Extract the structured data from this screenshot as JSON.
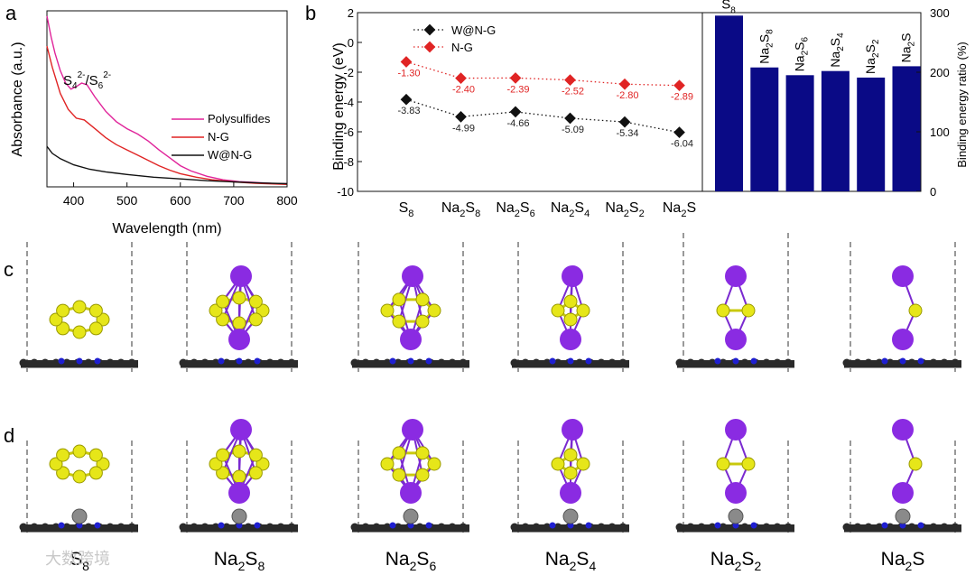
{
  "panels": {
    "a": "a",
    "b": "b",
    "c": "c",
    "d": "d"
  },
  "watermark": "大数跨境",
  "chart_data": [
    {
      "type": "line",
      "panel": "a",
      "xlabel": "Wavelength (nm)",
      "ylabel": "Absorbance (a.u.)",
      "xlim": [
        350,
        800
      ],
      "x_ticks": [
        400,
        500,
        600,
        700,
        800
      ],
      "annotation": {
        "base1": "S",
        "sub1": "4",
        "sup1": "2-",
        "sep": "/S",
        "sub2": "6",
        "sup2": "2-"
      },
      "legend_position": "right",
      "series": [
        {
          "name": "Polysulfides",
          "color": "#e0249a",
          "x": [
            350,
            358,
            365,
            375,
            385,
            395,
            405,
            415,
            425,
            440,
            460,
            480,
            500,
            520,
            540,
            560,
            580,
            600,
            620,
            650,
            680,
            710,
            740,
            770,
            800
          ],
          "y": [
            0.97,
            0.85,
            0.76,
            0.66,
            0.59,
            0.555,
            0.57,
            0.59,
            0.58,
            0.51,
            0.43,
            0.37,
            0.33,
            0.3,
            0.26,
            0.21,
            0.165,
            0.12,
            0.09,
            0.06,
            0.04,
            0.03,
            0.025,
            0.02,
            0.018
          ]
        },
        {
          "name": "N-G",
          "color": "#e02424",
          "x": [
            350,
            360,
            375,
            390,
            405,
            420,
            440,
            460,
            480,
            500,
            520,
            540,
            560,
            580,
            600,
            630,
            660,
            700,
            740,
            800
          ],
          "y": [
            0.8,
            0.68,
            0.53,
            0.44,
            0.39,
            0.38,
            0.33,
            0.28,
            0.24,
            0.21,
            0.18,
            0.15,
            0.12,
            0.095,
            0.075,
            0.055,
            0.04,
            0.028,
            0.02,
            0.014
          ]
        },
        {
          "name": "W@N-G",
          "color": "#111111",
          "x": [
            350,
            360,
            375,
            400,
            430,
            460,
            500,
            550,
            600,
            650,
            700,
            750,
            800
          ],
          "y": [
            0.23,
            0.19,
            0.16,
            0.125,
            0.1,
            0.085,
            0.07,
            0.055,
            0.045,
            0.035,
            0.028,
            0.022,
            0.018
          ]
        }
      ]
    },
    {
      "type": "line",
      "panel": "b-left",
      "ylabel": "Binding energy (eV)",
      "ylim": [
        -10,
        2
      ],
      "y_ticks": [
        2,
        0,
        -2,
        -4,
        -6,
        -8,
        -10
      ],
      "categories": [
        {
          "base": "S",
          "sub": "8"
        },
        {
          "base": "Na",
          "sub": "2",
          "mid": "S",
          "sub2": "8"
        },
        {
          "base": "Na",
          "sub": "2",
          "mid": "S",
          "sub2": "6"
        },
        {
          "base": "Na",
          "sub": "2",
          "mid": "S",
          "sub2": "4"
        },
        {
          "base": "Na",
          "sub": "2",
          "mid": "S",
          "sub2": "2"
        },
        {
          "base": "Na",
          "sub": "2",
          "mid": "S",
          "sub2": ""
        }
      ],
      "series": [
        {
          "name": "W@N-G",
          "color": "#111111",
          "values": [
            -3.83,
            -4.99,
            -4.66,
            -5.09,
            -5.34,
            -6.04
          ],
          "labels": [
            "-3.83",
            "-4.99",
            "-4.66",
            "-5.09",
            "-5.34",
            "-6.04"
          ]
        },
        {
          "name": "N-G",
          "color": "#e02424",
          "values": [
            -1.3,
            -2.4,
            -2.39,
            -2.52,
            -2.8,
            -2.89
          ],
          "labels": [
            "-1.30",
            "-2.40",
            "-2.39",
            "-2.52",
            "-2.80",
            "-2.89"
          ]
        }
      ]
    },
    {
      "type": "bar",
      "panel": "b-right",
      "ylabel": "Binding energy ratio (%)",
      "ylim": [
        0,
        300
      ],
      "y_ticks": [
        0,
        100,
        200,
        300
      ],
      "color": "#0a0a86",
      "categories": [
        {
          "base": "S",
          "sub": "8"
        },
        {
          "base": "Na",
          "sub": "2",
          "mid": "S",
          "sub2": "8"
        },
        {
          "base": "Na",
          "sub": "2",
          "mid": "S",
          "sub2": "6"
        },
        {
          "base": "Na",
          "sub": "2",
          "mid": "S",
          "sub2": "4"
        },
        {
          "base": "Na",
          "sub": "2",
          "mid": "S",
          "sub2": "2"
        },
        {
          "base": "Na",
          "sub": "2",
          "mid": "S",
          "sub2": ""
        }
      ],
      "values": [
        295,
        208,
        195,
        202,
        191,
        210
      ]
    }
  ],
  "structures": {
    "row_c": [
      {
        "name": "S8"
      },
      {
        "name": "Na2S8"
      },
      {
        "name": "Na2S6"
      },
      {
        "name": "Na2S4"
      },
      {
        "name": "Na2S2"
      },
      {
        "name": "Na2S"
      }
    ],
    "row_d": [
      {
        "name": "S8"
      },
      {
        "name": "Na2S8"
      },
      {
        "name": "Na2S6"
      },
      {
        "name": "Na2S4"
      },
      {
        "name": "Na2S2"
      },
      {
        "name": "Na2S"
      }
    ],
    "labels": [
      {
        "base": "S",
        "sub": "8"
      },
      {
        "base": "Na",
        "sub": "2",
        "mid": "S",
        "sub2": "8"
      },
      {
        "base": "Na",
        "sub": "2",
        "mid": "S",
        "sub2": "6"
      },
      {
        "base": "Na",
        "sub": "2",
        "mid": "S",
        "sub2": "4"
      },
      {
        "base": "Na",
        "sub": "2",
        "mid": "S",
        "sub2": "2"
      },
      {
        "base": "Na",
        "sub": "2",
        "mid": "S",
        "sub2": ""
      }
    ],
    "atom_colors": {
      "sulfur": "#e6e619",
      "sodium": "#8a2be2",
      "carbon": "#2a2a2a",
      "nitrogen": "#1f1fd0",
      "tungsten": "#8a8a8a"
    }
  }
}
